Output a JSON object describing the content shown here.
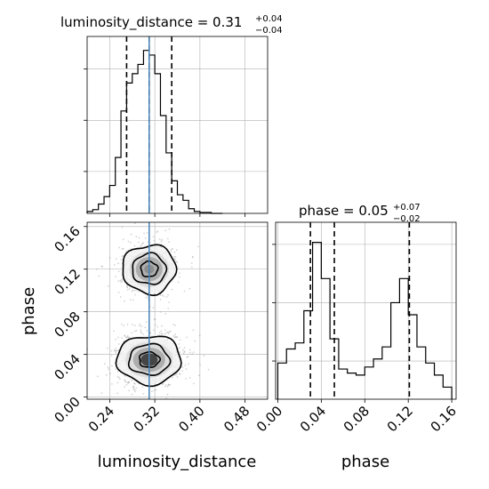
{
  "chart_data": [
    {
      "type": "histogram",
      "panel": "top-left",
      "variable": "luminosity_distance",
      "title": {
        "prefix": "luminosity_distance = 0.31",
        "plus": "+0.04",
        "minus": "−0.04"
      },
      "xlim": [
        0.2,
        0.52
      ],
      "bins": [
        0.2,
        0.21,
        0.22,
        0.23,
        0.24,
        0.25,
        0.26,
        0.27,
        0.28,
        0.29,
        0.3,
        0.31,
        0.32,
        0.33,
        0.34,
        0.35,
        0.36,
        0.37,
        0.38,
        0.39,
        0.4,
        0.41,
        0.42,
        0.43,
        0.44
      ],
      "counts": [
        2,
        4,
        10,
        18,
        30,
        60,
        110,
        140,
        150,
        160,
        175,
        170,
        150,
        105,
        65,
        35,
        20,
        14,
        5,
        2,
        1,
        1,
        0,
        0
      ],
      "ylim": [
        0,
        190
      ],
      "quantiles": [
        0.27,
        0.31,
        0.35
      ],
      "truth": 0.31
    },
    {
      "type": "histogram",
      "panel": "bottom-right",
      "variable": "phase",
      "title": {
        "prefix": "phase = 0.05",
        "plus": "+0.07",
        "minus": "−0.02"
      },
      "xlim": [
        -0.002,
        0.164
      ],
      "bins": [
        0.0,
        0.008,
        0.016,
        0.024,
        0.032,
        0.04,
        0.048,
        0.056,
        0.064,
        0.072,
        0.08,
        0.088,
        0.096,
        0.104,
        0.112,
        0.12,
        0.128,
        0.136,
        0.144,
        0.152,
        0.16
      ],
      "counts": [
        18,
        25,
        28,
        44,
        78,
        60,
        30,
        15,
        13,
        12,
        16,
        20,
        26,
        48,
        60,
        42,
        26,
        18,
        12,
        6
      ],
      "ylim": [
        0,
        88
      ],
      "quantiles": [
        0.03,
        0.052,
        0.121
      ],
      "xticks": [
        "0.00",
        "0.04",
        "0.08",
        "0.12",
        "0.16"
      ],
      "xtick_values": [
        0.0,
        0.04,
        0.08,
        0.12,
        0.16
      ],
      "xlabel": "phase"
    },
    {
      "type": "2d-density",
      "panel": "bottom-left",
      "xvar": "luminosity_distance",
      "yvar": "phase",
      "xlim": [
        0.2,
        0.52
      ],
      "ylim": [
        -0.002,
        0.164
      ],
      "xticks": [
        "0.24",
        "0.32",
        "0.40",
        "0.48"
      ],
      "xtick_values": [
        0.24,
        0.32,
        0.4,
        0.48
      ],
      "yticks": [
        "0.00",
        "0.04",
        "0.08",
        "0.12",
        "0.16"
      ],
      "ytick_values": [
        0.0,
        0.04,
        0.08,
        0.12,
        0.16
      ],
      "xlabel": "luminosity_distance",
      "ylabel": "phase",
      "truth_x": 0.31,
      "modes": [
        {
          "x": 0.31,
          "y": 0.12,
          "sx": 0.025,
          "sy": 0.012,
          "weight": 0.4
        },
        {
          "x": 0.31,
          "y": 0.035,
          "sx": 0.03,
          "sy": 0.012,
          "weight": 0.6
        }
      ]
    }
  ],
  "colors": {
    "line": "#000000",
    "truth": "#4682b4",
    "grid": "#b0b0b0",
    "points": "#a0a0a0"
  }
}
